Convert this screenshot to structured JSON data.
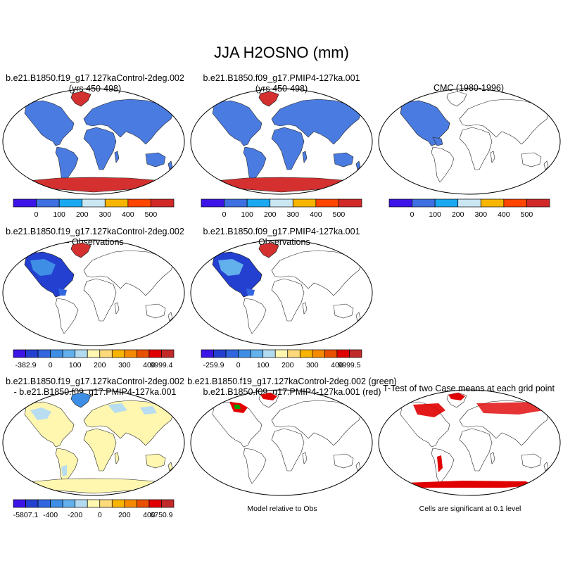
{
  "page": {
    "title": "JJA H2OSNO (mm)"
  },
  "colors": {
    "land_blue": "#4a7be0",
    "snow_red": "#d43030",
    "diff_yellow": "#fff7b0",
    "diff_lightblue": "#b8dcf0",
    "sig_red": "#e00000",
    "sig_green": "#00a000"
  },
  "panels": {
    "p1": {
      "title_line1": "b.e21.B1850.f19_g17.127kaControl-2deg.002",
      "title_line2": "(yrs 450-498)"
    },
    "p2": {
      "title_line1": "b.e21.B1850.f09_g17.PMIP4-127ka.001",
      "title_line2": "(yrs 450-498)"
    },
    "p3": {
      "title_line1": "CMC (1980-1996)"
    },
    "p4": {
      "title_line1": "b.e21.B1850.f19_g17.127kaControl-2deg.002",
      "title_line2": "- Observations"
    },
    "p5": {
      "title_line1": "b.e21.B1850.f09_g17.PMIP4-127ka.001",
      "title_line2": "- Observations"
    },
    "p7": {
      "title_line1": "b.e21.B1850.f19_g17.127kaControl-2deg.002",
      "title_line2": "- b.e21.B1850.f09_g17.PMIP4-127ka.001"
    },
    "p8": {
      "title_line1": "b.e21.B1850.f19_g17.127kaControl-2deg.002 (green)",
      "title_line2": "b.e21.B1850.f09_g17.PMIP4-127ka.001 (red)",
      "footnote": "Model relative to Obs"
    },
    "p9": {
      "title_line1": "T-Test of two Case means at each grid point",
      "footnote": "Cells are significant at 0.1 level"
    }
  },
  "colorbars": {
    "abs": {
      "colors": [
        "#3c14e8",
        "#3f70e2",
        "#1aa8f0",
        "#c9e6f2",
        "#f5b500",
        "#ff4500",
        "#d12828"
      ],
      "labels": [
        "0",
        "100",
        "200",
        "300",
        "400",
        "500"
      ]
    },
    "obs1": {
      "colors": [
        "#3c14e8",
        "#2440d0",
        "#3166e0",
        "#3e8ee6",
        "#62b0ec",
        "#b2daf0",
        "#fff7b0",
        "#fcd97a",
        "#f8b400",
        "#f58a00",
        "#e85000",
        "#e00000",
        "#c22a2a"
      ],
      "labels": [
        "-382.9",
        "0",
        "100",
        "200",
        "300",
        "400",
        "9999.4"
      ]
    },
    "obs2": {
      "colors": [
        "#3c14e8",
        "#2440d0",
        "#3166e0",
        "#3e8ee6",
        "#62b0ec",
        "#b2daf0",
        "#fff7b0",
        "#fcd97a",
        "#f8b400",
        "#f58a00",
        "#e85000",
        "#e00000",
        "#c22a2a"
      ],
      "labels": [
        "-259.9",
        "0",
        "100",
        "200",
        "300",
        "400",
        "9999.5"
      ]
    },
    "diff": {
      "colors": [
        "#3c14e8",
        "#2440d0",
        "#3166e0",
        "#3e8ee6",
        "#62b0ec",
        "#b2daf0",
        "#fff7b0",
        "#fcd97a",
        "#f8b400",
        "#f58a00",
        "#e85000",
        "#e00000",
        "#c22a2a"
      ],
      "labels": [
        "-5807.1",
        "-400",
        "-200",
        "0",
        "200",
        "400",
        "6750.9"
      ]
    }
  }
}
